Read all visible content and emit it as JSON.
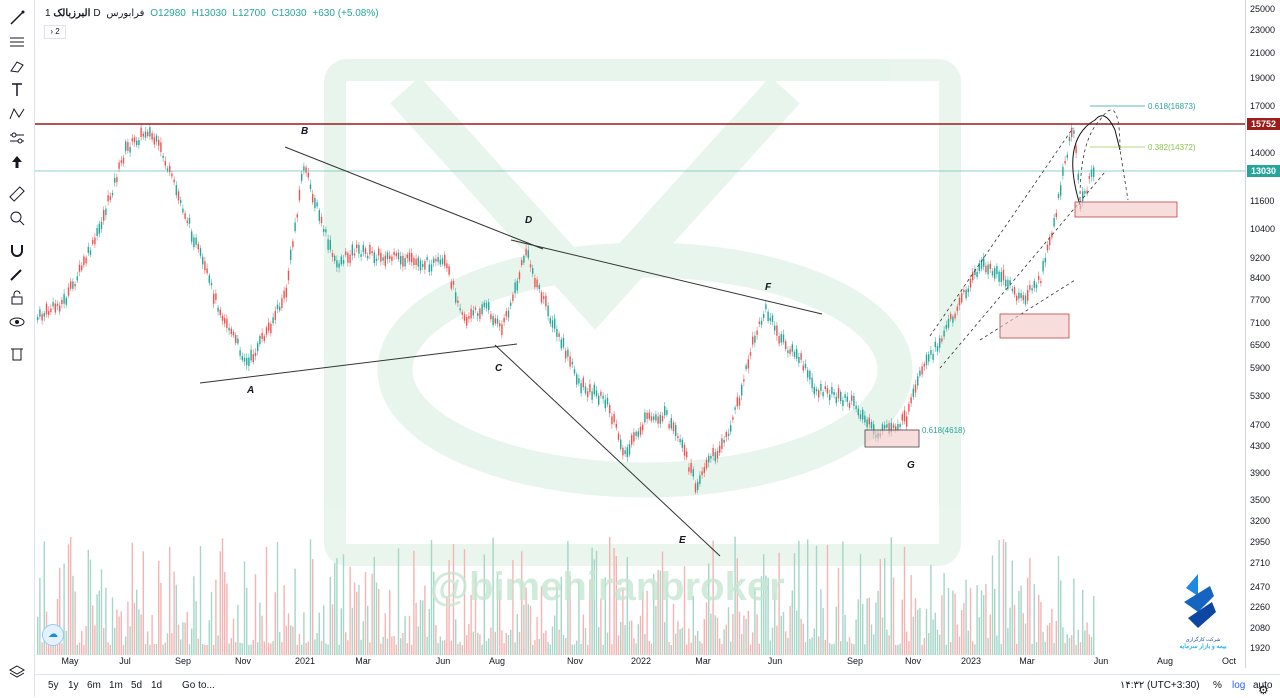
{
  "legend": {
    "symbol": "البرزبالک",
    "interval": "1D",
    "exchange": "فرابورس",
    "open": "O12980",
    "high": "H13030",
    "low": "L12700",
    "close": "C13030",
    "change": "+630 (+5.08%)",
    "collapse": "2"
  },
  "watermark": "@bimehiranbroker",
  "logo": {
    "line1": "شرکت کارگزاری",
    "line2": "بیمه و بازار سرمایه"
  },
  "price_axis": {
    "ticks": [
      "25000",
      "23000",
      "21000",
      "19000",
      "17000",
      "15752",
      "14000",
      "13030",
      "11600",
      "10400",
      "9200",
      "8400",
      "7700",
      "7100",
      "6500",
      "5900",
      "5300",
      "4700",
      "4300",
      "3900",
      "3500",
      "3200",
      "2950",
      "2710",
      "2470",
      "2260",
      "2080",
      "1920"
    ],
    "current_price": "15752",
    "last_price": "13030",
    "resistance_color": "#9c1b1b",
    "last_price_color": "#26a69a"
  },
  "time_axis": {
    "labels": [
      "May",
      "Jul",
      "Sep",
      "Nov",
      "2021",
      "Mar",
      "Jun",
      "Aug",
      "Nov",
      "2022",
      "Mar",
      "Jun",
      "Sep",
      "Nov",
      "2023",
      "Mar",
      "Jun",
      "Aug",
      "Oct"
    ]
  },
  "bottom_bar": {
    "ranges": [
      "5y",
      "1y",
      "6m",
      "1m",
      "5d",
      "1d"
    ],
    "goto": "Go to...",
    "time": "۱۴:۳۲ (UTC+3:30)",
    "percent": "%",
    "log": "log",
    "auto": "auto"
  },
  "chart_data": {
    "type": "candlestick",
    "title": "",
    "scale": "log",
    "points": [
      {
        "label": "A",
        "date": "2020-11",
        "price": 5700
      },
      {
        "label": "B",
        "date": "2021-01",
        "price": 13500
      },
      {
        "label": "C",
        "date": "2021-08",
        "price": 6600
      },
      {
        "label": "D",
        "date": "2021-08",
        "price": 9700
      },
      {
        "label": "E",
        "date": "2022-03",
        "price": 2900
      },
      {
        "label": "F",
        "date": "2022-06",
        "price": 8000
      },
      {
        "label": "G",
        "date": "2022-10",
        "price": 4300
      }
    ],
    "annotations": [
      "0.618(16873)",
      "0.382(14372)",
      "0.618(4618)"
    ],
    "horizontal_lines": [
      15752,
      13030
    ],
    "colors": {
      "up": "#26a69a",
      "down": "#ef5350"
    }
  }
}
